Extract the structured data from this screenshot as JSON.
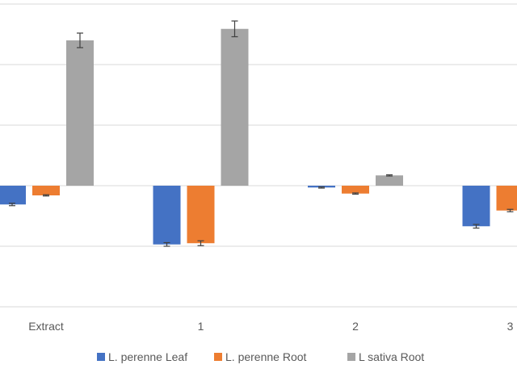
{
  "chart_data": {
    "type": "bar",
    "title": "",
    "xlabel": "",
    "ylabel": "",
    "categories": [
      "Extract",
      "1",
      "2",
      "3"
    ],
    "ylim": [
      -2,
      3
    ],
    "grid": true,
    "legend_position": "bottom",
    "series": [
      {
        "name": "L. perenne Leaf",
        "color": "#4472C4",
        "values": [
          -0.31,
          -0.97,
          -0.03,
          -0.67
        ],
        "errors": [
          0.02,
          0.03,
          0.01,
          0.03
        ]
      },
      {
        "name": "L. perenne Root",
        "color": "#ED7D31",
        "values": [
          -0.16,
          -0.95,
          -0.13,
          -0.41
        ],
        "errors": [
          0.01,
          0.04,
          0.01,
          0.02
        ]
      },
      {
        "name": "L sativa Root",
        "color": "#A5A5A5",
        "values": [
          2.4,
          2.59,
          0.17,
          null
        ],
        "errors": [
          0.12,
          0.13,
          0.01,
          null
        ]
      }
    ]
  }
}
